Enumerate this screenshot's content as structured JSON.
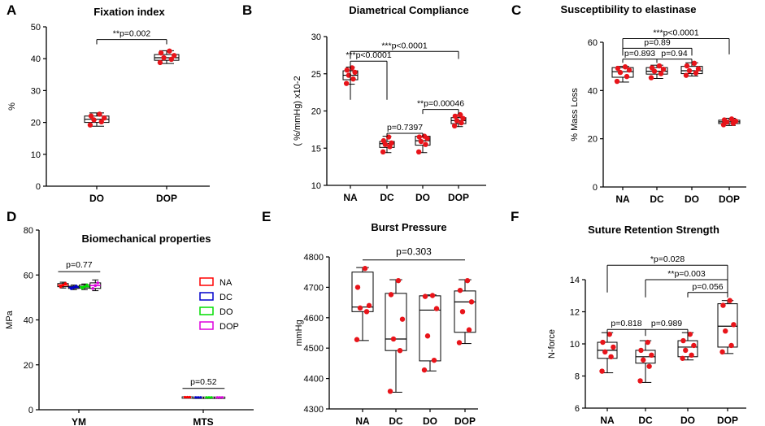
{
  "panel_labels": [
    "A",
    "B",
    "C",
    "D",
    "E",
    "F"
  ],
  "chart_data": [
    {
      "id": "A",
      "type": "boxplot",
      "title": "Fixation index",
      "ylabel": "%",
      "xlabel": "",
      "ylim": [
        0,
        50
      ],
      "yticks": [
        0,
        10,
        20,
        30,
        40,
        50
      ],
      "categories": [
        "DO",
        "DOP"
      ],
      "boxes": [
        {
          "min": 18.8,
          "q1": 20.0,
          "median": 21.0,
          "q3": 22.0,
          "max": 23.0,
          "points": [
            19.2,
            20.2,
            20.8,
            21.4,
            22.0,
            22.6
          ]
        },
        {
          "min": 38.5,
          "q1": 39.5,
          "median": 40.3,
          "q3": 41.3,
          "max": 42.5,
          "points": [
            38.8,
            39.8,
            40.3,
            41.0,
            41.8,
            42.4
          ]
        }
      ],
      "sig": [
        {
          "from": 0,
          "to": 1,
          "label": "**p=0.002",
          "y": 46,
          "drop": 44.5
        }
      ]
    },
    {
      "id": "B",
      "type": "boxplot",
      "title": "Diametrical Compliance",
      "ylabel": "( %/mmHg) x10-2",
      "xlabel": "",
      "ylim": [
        10,
        30
      ],
      "yticks": [
        10,
        15,
        20,
        25,
        30
      ],
      "categories": [
        "NA",
        "DC",
        "DO",
        "DOP"
      ],
      "boxes": [
        {
          "min": 23.6,
          "q1": 24.2,
          "median": 24.8,
          "q3": 25.4,
          "max": 25.9,
          "points": [
            23.7,
            24.3,
            24.8,
            25.2,
            25.5,
            25.8
          ]
        },
        {
          "min": 14.4,
          "q1": 15.1,
          "median": 15.6,
          "q3": 15.9,
          "max": 16.6,
          "points": [
            14.5,
            15.2,
            15.5,
            15.7,
            16.0,
            16.5
          ]
        },
        {
          "min": 14.4,
          "q1": 15.4,
          "median": 16.0,
          "q3": 16.6,
          "max": 16.6,
          "points": [
            14.5,
            15.5,
            15.9,
            16.3,
            16.5,
            16.6
          ]
        },
        {
          "min": 17.9,
          "q1": 18.3,
          "median": 18.7,
          "q3": 19.1,
          "max": 19.5,
          "points": [
            18.0,
            18.4,
            18.7,
            19.0,
            19.3,
            19.5
          ]
        }
      ],
      "sig": [
        {
          "from": 0,
          "to": 3,
          "label": "***p<0.0001",
          "y": 28.0,
          "drop": 27.0
        },
        {
          "from": 0,
          "to": 1,
          "label": "***p<0.0001",
          "y": 26.7,
          "drop": 21.5
        },
        {
          "from": 2,
          "to": 3,
          "label": "**p=0.00046",
          "y": 20.2,
          "drop": 19.6
        },
        {
          "from": 1,
          "to": 2,
          "label": "p=0.7397",
          "y": 17.0,
          "drop": 16.5
        }
      ]
    },
    {
      "id": "C",
      "type": "boxplot",
      "title": "Susceptibility to elastinase",
      "ylabel": "% Mass  Loss",
      "xlabel": "",
      "ylim": [
        0,
        60
      ],
      "yticks": [
        0,
        20,
        40,
        60
      ],
      "categories": [
        "NA",
        "DC",
        "DO",
        "DOP"
      ],
      "boxes": [
        {
          "min": 43.5,
          "q1": 45.5,
          "median": 47.8,
          "q3": 49.5,
          "max": 50.0,
          "points": [
            43.8,
            45.8,
            47.5,
            48.5,
            49.2,
            49.8
          ]
        },
        {
          "min": 45.0,
          "q1": 46.8,
          "median": 48.0,
          "q3": 49.5,
          "max": 50.5,
          "points": [
            45.3,
            47.0,
            48.0,
            48.8,
            49.4,
            50.2
          ]
        },
        {
          "min": 46.0,
          "q1": 47.0,
          "median": 48.2,
          "q3": 50.0,
          "max": 51.5,
          "points": [
            46.3,
            47.3,
            48.2,
            49.0,
            50.2,
            51.3
          ]
        },
        {
          "min": 25.5,
          "q1": 26.3,
          "median": 27.0,
          "q3": 27.7,
          "max": 28.5,
          "points": [
            25.8,
            26.4,
            26.9,
            27.3,
            27.8,
            28.2
          ]
        }
      ],
      "sig": [
        {
          "from": 0,
          "to": 3,
          "label": "***p<0.0001",
          "y": 61.5,
          "drop": 55
        },
        {
          "from": 0,
          "to": 2,
          "label": "p=0.89",
          "y": 57.5,
          "drop": 54.5
        },
        {
          "from": 0,
          "to": 1,
          "label": "p=0.893",
          "y": 53.0,
          "drop": 51.5
        },
        {
          "from": 1,
          "to": 2,
          "label": "p=0.94",
          "y": 53.0,
          "drop": 51.5
        }
      ]
    },
    {
      "id": "D",
      "type": "grouped_boxplot",
      "title": "Biomechanical properties",
      "ylabel": "MPa",
      "xlabel": "",
      "ylim": [
        0,
        80
      ],
      "yticks": [
        0,
        20,
        40,
        60,
        80
      ],
      "categories": [
        "YM",
        "MTS"
      ],
      "series": [
        {
          "name": "NA",
          "color": "#ff0000",
          "boxes": [
            {
              "min": 54.2,
              "q1": 54.8,
              "median": 55.5,
              "q3": 56.2,
              "max": 56.8
            },
            {
              "min": 5.2,
              "q1": 5.4,
              "median": 5.6,
              "q3": 5.8,
              "max": 6.0
            }
          ]
        },
        {
          "name": "DC",
          "color": "#0000cc",
          "boxes": [
            {
              "min": 53.5,
              "q1": 54.0,
              "median": 54.5,
              "q3": 55.0,
              "max": 55.5
            },
            {
              "min": 5.2,
              "q1": 5.4,
              "median": 5.5,
              "q3": 5.7,
              "max": 5.9
            }
          ]
        },
        {
          "name": "DO",
          "color": "#00dd00",
          "boxes": [
            {
              "min": 53.5,
              "q1": 54.2,
              "median": 54.8,
              "q3": 55.5,
              "max": 56.0
            },
            {
              "min": 5.2,
              "q1": 5.4,
              "median": 5.5,
              "q3": 5.7,
              "max": 5.9
            }
          ]
        },
        {
          "name": "DOP",
          "color": "#dd00dd",
          "boxes": [
            {
              "min": 53.0,
              "q1": 54.0,
              "median": 55.3,
              "q3": 56.5,
              "max": 57.8
            },
            {
              "min": 5.2,
              "q1": 5.4,
              "median": 5.5,
              "q3": 5.7,
              "max": 5.9
            }
          ]
        }
      ],
      "sig": [
        {
          "category": 0,
          "label": "p=0.77",
          "y": 61.5
        },
        {
          "category": 1,
          "label": "p=0.52",
          "y": 9.5
        }
      ]
    },
    {
      "id": "E",
      "type": "boxplot",
      "title": "Burst Pressure",
      "ylabel": "mmHg",
      "xlabel": "",
      "ylim": [
        4300,
        4800
      ],
      "yticks": [
        4300,
        4400,
        4500,
        4600,
        4700,
        4800
      ],
      "categories": [
        "NA",
        "DC",
        "DO",
        "DOP"
      ],
      "boxes": [
        {
          "min": 4525,
          "q1": 4620,
          "median": 4635,
          "q3": 4750,
          "max": 4765,
          "points": [
            4528,
            4620,
            4632,
            4640,
            4700,
            4762
          ]
        },
        {
          "min": 4355,
          "q1": 4492,
          "median": 4530,
          "q3": 4680,
          "max": 4725,
          "points": [
            4358,
            4492,
            4530,
            4595,
            4676,
            4722
          ]
        },
        {
          "min": 4425,
          "q1": 4458,
          "median": 4625,
          "q3": 4672,
          "max": 4675,
          "points": [
            4428,
            4460,
            4540,
            4630,
            4670,
            4673
          ]
        },
        {
          "min": 4515,
          "q1": 4552,
          "median": 4652,
          "q3": 4688,
          "max": 4725,
          "points": [
            4518,
            4560,
            4620,
            4652,
            4690,
            4722
          ]
        }
      ],
      "sig": [
        {
          "from": 0,
          "to": 3,
          "label": "p=0.303",
          "y": 4790,
          "drop": 4790
        }
      ]
    },
    {
      "id": "F",
      "type": "boxplot",
      "title": "Suture Retention Strength",
      "ylabel": "N-force",
      "xlabel": "",
      "ylim": [
        6,
        14
      ],
      "yticks": [
        6,
        8,
        10,
        12,
        14
      ],
      "categories": [
        "NA",
        "DC",
        "DO",
        "DOP"
      ],
      "boxes": [
        {
          "min": 8.2,
          "q1": 9.1,
          "median": 9.6,
          "q3": 10.1,
          "max": 10.7,
          "points": [
            8.3,
            9.2,
            9.5,
            9.8,
            10.1,
            10.6
          ]
        },
        {
          "min": 7.6,
          "q1": 8.8,
          "median": 9.2,
          "q3": 9.6,
          "max": 10.2,
          "points": [
            7.7,
            8.6,
            9.0,
            9.3,
            9.6,
            10.1
          ]
        },
        {
          "min": 9.0,
          "q1": 9.2,
          "median": 9.8,
          "q3": 10.2,
          "max": 10.7,
          "points": [
            9.1,
            9.3,
            9.6,
            9.9,
            10.2,
            10.6
          ]
        },
        {
          "min": 9.4,
          "q1": 9.8,
          "median": 11.1,
          "q3": 12.5,
          "max": 12.7,
          "points": [
            9.5,
            9.9,
            10.8,
            11.2,
            12.4,
            12.7
          ]
        }
      ],
      "sig": [
        {
          "from": 0,
          "to": 3,
          "label": "*p=0.028",
          "y": 14.9,
          "drop": 13.2
        },
        {
          "from": 1,
          "to": 3,
          "label": "**p=0.003",
          "y": 14.0,
          "drop": 12.9
        },
        {
          "from": 2,
          "to": 3,
          "label": "p=0.056",
          "y": 13.2,
          "drop": 12.9
        },
        {
          "from": 0,
          "to": 1,
          "label": "p=0.818",
          "y": 10.9,
          "drop": 10.5
        },
        {
          "from": 1,
          "to": 2,
          "label": "p=0.989",
          "y": 10.9,
          "drop": 10.5
        }
      ]
    }
  ]
}
